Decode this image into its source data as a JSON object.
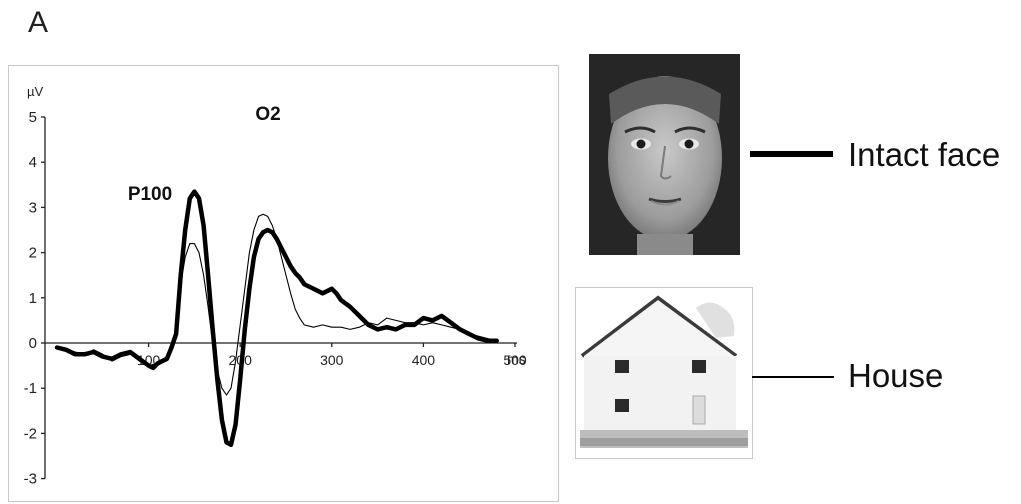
{
  "panel_label": "A",
  "chart_data": {
    "type": "line",
    "title": "O2",
    "ylabel": "µV",
    "xlabel": "ms",
    "annotation": "P100",
    "xlim": [
      0,
      500
    ],
    "ylim": [
      -3,
      5
    ],
    "x_ticks": [
      100,
      200,
      300,
      400,
      500
    ],
    "y_ticks": [
      5,
      4,
      3,
      2,
      1,
      0,
      -1,
      -2,
      -3
    ],
    "series": [
      {
        "name": "Intact face",
        "style": "thick",
        "points": [
          [
            0,
            -0.1
          ],
          [
            10,
            -0.15
          ],
          [
            20,
            -0.25
          ],
          [
            30,
            -0.25
          ],
          [
            40,
            -0.2
          ],
          [
            50,
            -0.3
          ],
          [
            60,
            -0.35
          ],
          [
            70,
            -0.25
          ],
          [
            80,
            -0.2
          ],
          [
            90,
            -0.35
          ],
          [
            100,
            -0.5
          ],
          [
            105,
            -0.55
          ],
          [
            110,
            -0.45
          ],
          [
            120,
            -0.35
          ],
          [
            125,
            -0.1
          ],
          [
            130,
            0.2
          ],
          [
            135,
            1.5
          ],
          [
            140,
            2.5
          ],
          [
            145,
            3.2
          ],
          [
            150,
            3.35
          ],
          [
            155,
            3.2
          ],
          [
            160,
            2.6
          ],
          [
            165,
            1.5
          ],
          [
            170,
            0.3
          ],
          [
            175,
            -0.8
          ],
          [
            180,
            -1.7
          ],
          [
            185,
            -2.2
          ],
          [
            190,
            -2.25
          ],
          [
            195,
            -1.8
          ],
          [
            200,
            -0.8
          ],
          [
            205,
            0.3
          ],
          [
            210,
            1.2
          ],
          [
            215,
            1.9
          ],
          [
            220,
            2.3
          ],
          [
            225,
            2.45
          ],
          [
            230,
            2.5
          ],
          [
            235,
            2.45
          ],
          [
            240,
            2.3
          ],
          [
            245,
            2.1
          ],
          [
            250,
            1.9
          ],
          [
            255,
            1.7
          ],
          [
            260,
            1.55
          ],
          [
            265,
            1.45
          ],
          [
            270,
            1.3
          ],
          [
            280,
            1.2
          ],
          [
            290,
            1.1
          ],
          [
            300,
            1.2
          ],
          [
            305,
            1.1
          ],
          [
            310,
            0.95
          ],
          [
            320,
            0.8
          ],
          [
            330,
            0.6
          ],
          [
            340,
            0.4
          ],
          [
            350,
            0.3
          ],
          [
            360,
            0.35
          ],
          [
            370,
            0.3
          ],
          [
            380,
            0.4
          ],
          [
            390,
            0.4
          ],
          [
            400,
            0.55
          ],
          [
            410,
            0.5
          ],
          [
            420,
            0.6
          ],
          [
            430,
            0.45
          ],
          [
            440,
            0.3
          ],
          [
            450,
            0.2
          ],
          [
            460,
            0.1
          ],
          [
            470,
            0.05
          ],
          [
            480,
            0.05
          ]
        ]
      },
      {
        "name": "House",
        "style": "thin",
        "points": [
          [
            0,
            -0.1
          ],
          [
            10,
            -0.15
          ],
          [
            20,
            -0.2
          ],
          [
            30,
            -0.25
          ],
          [
            40,
            -0.15
          ],
          [
            50,
            -0.25
          ],
          [
            60,
            -0.4
          ],
          [
            70,
            -0.3
          ],
          [
            80,
            -0.25
          ],
          [
            90,
            -0.4
          ],
          [
            100,
            -0.5
          ],
          [
            110,
            -0.45
          ],
          [
            120,
            -0.35
          ],
          [
            125,
            -0.1
          ],
          [
            130,
            0.3
          ],
          [
            135,
            1.3
          ],
          [
            140,
            1.9
          ],
          [
            145,
            2.2
          ],
          [
            150,
            2.2
          ],
          [
            155,
            2.0
          ],
          [
            160,
            1.5
          ],
          [
            165,
            0.8
          ],
          [
            170,
            0.0
          ],
          [
            175,
            -0.6
          ],
          [
            180,
            -1.0
          ],
          [
            185,
            -1.15
          ],
          [
            190,
            -1.0
          ],
          [
            195,
            -0.4
          ],
          [
            200,
            0.4
          ],
          [
            205,
            1.2
          ],
          [
            210,
            2.0
          ],
          [
            215,
            2.5
          ],
          [
            220,
            2.8
          ],
          [
            225,
            2.85
          ],
          [
            230,
            2.8
          ],
          [
            235,
            2.6
          ],
          [
            240,
            2.3
          ],
          [
            245,
            1.9
          ],
          [
            250,
            1.5
          ],
          [
            255,
            1.1
          ],
          [
            260,
            0.75
          ],
          [
            265,
            0.55
          ],
          [
            270,
            0.4
          ],
          [
            280,
            0.35
          ],
          [
            290,
            0.4
          ],
          [
            300,
            0.35
          ],
          [
            310,
            0.35
          ],
          [
            320,
            0.3
          ],
          [
            330,
            0.35
          ],
          [
            340,
            0.45
          ],
          [
            350,
            0.4
          ],
          [
            360,
            0.55
          ],
          [
            370,
            0.5
          ],
          [
            380,
            0.45
          ],
          [
            390,
            0.45
          ],
          [
            400,
            0.4
          ],
          [
            410,
            0.45
          ],
          [
            420,
            0.4
          ],
          [
            430,
            0.35
          ],
          [
            440,
            0.3
          ],
          [
            450,
            0.2
          ],
          [
            460,
            0.15
          ],
          [
            470,
            0.1
          ],
          [
            480,
            0.05
          ]
        ]
      }
    ]
  },
  "legend": [
    {
      "label": "Intact face",
      "style": "thick"
    },
    {
      "label": "House",
      "style": "thin"
    }
  ]
}
